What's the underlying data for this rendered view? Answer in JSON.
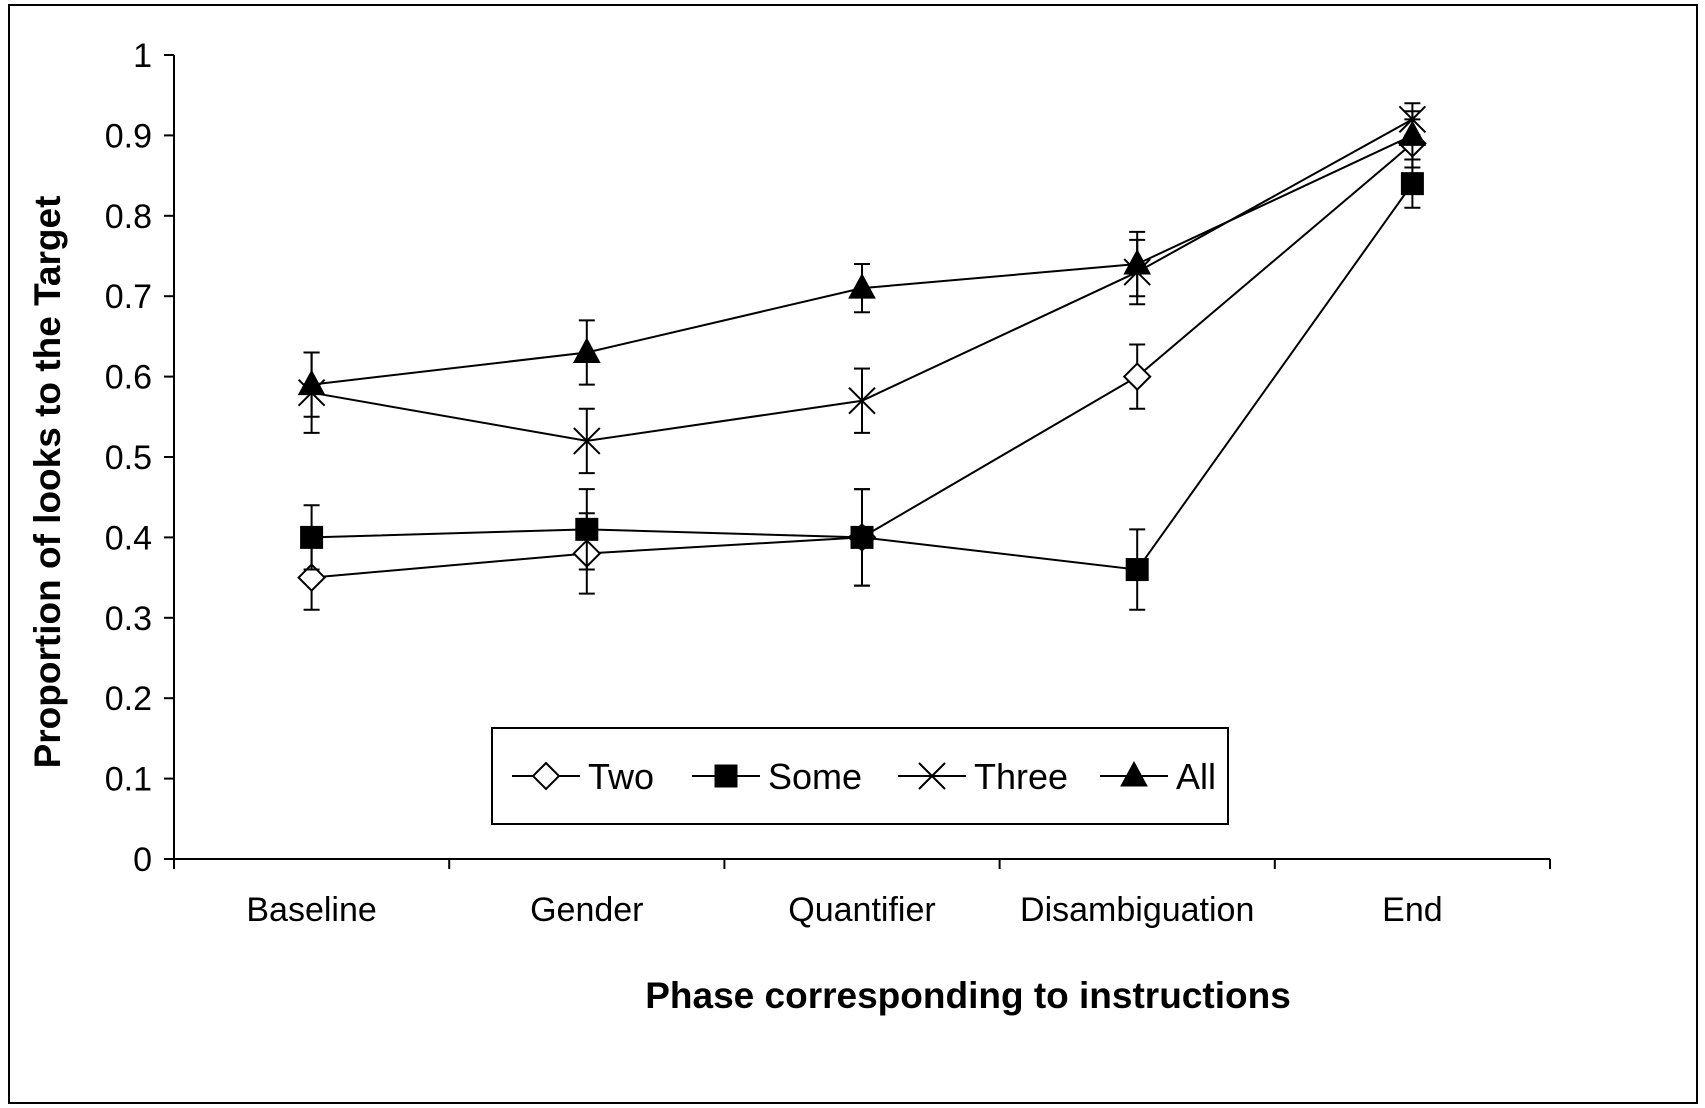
{
  "chart_data": {
    "type": "line",
    "title": "",
    "xlabel": "Phase corresponding to instructions",
    "ylabel": "Proportion of looks to the Target",
    "categories": [
      "Baseline",
      "Gender",
      "Quantifier",
      "Disambiguation",
      "End"
    ],
    "ylim": [
      0,
      1
    ],
    "yticks": [
      "0",
      "0.1",
      "0.2",
      "0.3",
      "0.4",
      "0.5",
      "0.6",
      "0.7",
      "0.8",
      "0.9",
      "1"
    ],
    "grid": false,
    "legend_position": "bottom-center-inside",
    "series": [
      {
        "name": "Two",
        "marker": "diamond-open",
        "values": [
          0.35,
          0.38,
          0.4,
          0.6,
          0.89
        ],
        "err": [
          0.04,
          0.05,
          0.06,
          0.04,
          0.03
        ]
      },
      {
        "name": "Some",
        "marker": "square-filled",
        "values": [
          0.4,
          0.41,
          0.4,
          0.36,
          0.84
        ],
        "err": [
          0.04,
          0.05,
          0.06,
          0.05,
          0.03
        ]
      },
      {
        "name": "Three",
        "marker": "x",
        "values": [
          0.58,
          0.52,
          0.57,
          0.73,
          0.92
        ],
        "err": [
          0.05,
          0.04,
          0.04,
          0.04,
          0.02
        ]
      },
      {
        "name": "All",
        "marker": "triangle-filled",
        "values": [
          0.59,
          0.63,
          0.71,
          0.74,
          0.9
        ],
        "err": [
          0.04,
          0.04,
          0.03,
          0.04,
          0.03
        ]
      }
    ]
  }
}
